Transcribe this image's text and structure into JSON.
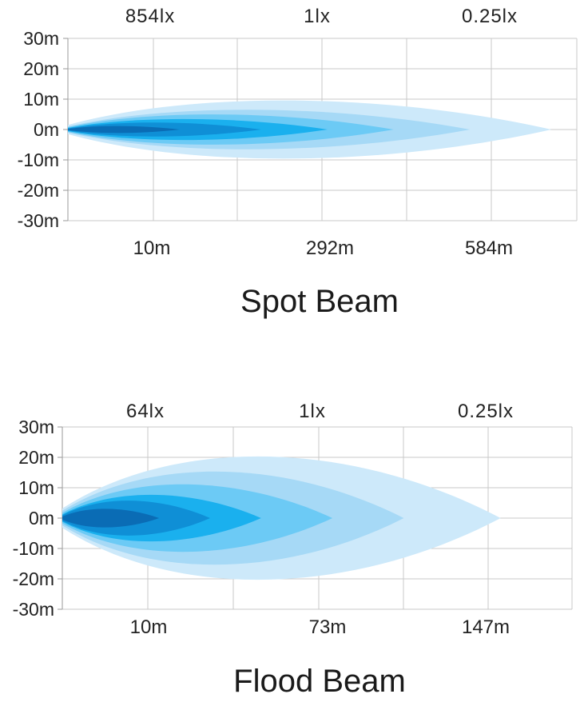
{
  "chart_data": [
    {
      "type": "area",
      "title": "Spot Beam",
      "y_ticks": [
        "30m",
        "20m",
        "10m",
        "0m",
        "-10m",
        "-20m",
        "-30m"
      ],
      "ylim": [
        -30,
        30
      ],
      "lux_labels": [
        "854lx",
        "1lx",
        "0.25lx"
      ],
      "distance_labels": [
        "10m",
        "292m",
        "584m"
      ],
      "grid": true,
      "colors": [
        "#cde9fa",
        "#a6d9f6",
        "#6ccaf5",
        "#1ab0ee",
        "#0f8fd6",
        "#0a6cb5"
      ],
      "zones": [
        {
          "reach": 0.95,
          "half_width_m": 12.5
        },
        {
          "reach": 0.79,
          "half_width_m": 8.5
        },
        {
          "reach": 0.64,
          "half_width_m": 6.5
        },
        {
          "reach": 0.51,
          "half_width_m": 4.5
        },
        {
          "reach": 0.38,
          "half_width_m": 3.0
        },
        {
          "reach": 0.22,
          "half_width_m": 1.5
        }
      ]
    },
    {
      "type": "area",
      "title": "Flood Beam",
      "y_ticks": [
        "30m",
        "20m",
        "10m",
        "0m",
        "-10m",
        "-20m",
        "-30m"
      ],
      "ylim": [
        -30,
        30
      ],
      "lux_labels": [
        "64lx",
        "1lx",
        "0.25lx"
      ],
      "distance_labels": [
        "10m",
        "73m",
        "147m"
      ],
      "grid": true,
      "colors": [
        "#cde9fa",
        "#a6d9f6",
        "#6ccaf5",
        "#1ab0ee",
        "#0f8fd6",
        "#0a6cb5"
      ],
      "zones": [
        {
          "reach": 0.86,
          "half_width_m": 26.5
        },
        {
          "reach": 0.67,
          "half_width_m": 20.0
        },
        {
          "reach": 0.53,
          "half_width_m": 14.5
        },
        {
          "reach": 0.39,
          "half_width_m": 10.0
        },
        {
          "reach": 0.29,
          "half_width_m": 7.5
        },
        {
          "reach": 0.19,
          "half_width_m": 4.0
        }
      ]
    }
  ]
}
